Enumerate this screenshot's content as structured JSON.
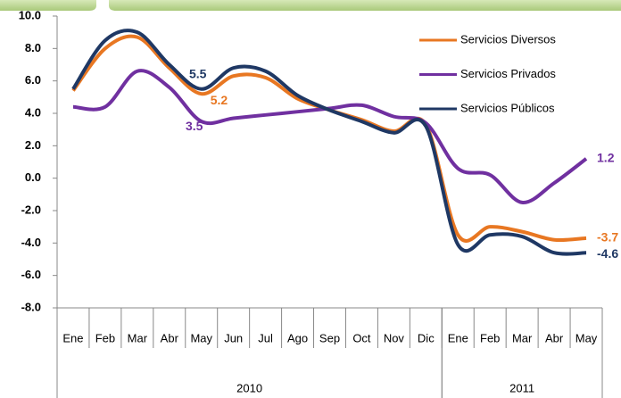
{
  "chart_data": {
    "type": "line",
    "categories": [
      "Ene",
      "Feb",
      "Mar",
      "Abr",
      "May",
      "Jun",
      "Jul",
      "Ago",
      "Sep",
      "Oct",
      "Nov",
      "Dic",
      "Ene",
      "Feb",
      "Mar",
      "Abr",
      "May"
    ],
    "groups": [
      {
        "label": "2010",
        "count": 12
      },
      {
        "label": "2011",
        "count": 5
      }
    ],
    "series": [
      {
        "name": "Servicios Diversos",
        "color": "#e87722",
        "values": [
          5.4,
          8.0,
          8.7,
          6.8,
          5.2,
          6.3,
          6.2,
          4.9,
          4.2,
          3.6,
          2.9,
          3.3,
          -3.5,
          -3.0,
          -3.3,
          -3.8,
          -3.7
        ],
        "value_labels": [
          null,
          null,
          null,
          null,
          "5.2",
          null,
          null,
          null,
          null,
          null,
          null,
          null,
          null,
          null,
          null,
          null,
          "-3.7"
        ]
      },
      {
        "name": "Servicios Privados",
        "color": "#7030a0",
        "values": [
          4.4,
          4.4,
          6.6,
          5.6,
          3.5,
          3.7,
          3.9,
          4.1,
          4.3,
          4.5,
          3.8,
          3.4,
          0.6,
          0.2,
          -1.5,
          -0.3,
          1.2
        ],
        "value_labels": [
          null,
          null,
          null,
          null,
          "3.5",
          null,
          null,
          null,
          null,
          null,
          null,
          null,
          null,
          null,
          null,
          null,
          "1.2"
        ]
      },
      {
        "name": "Servicios Públicos",
        "color": "#1f3864",
        "values": [
          5.5,
          8.5,
          9.0,
          7.0,
          5.5,
          6.8,
          6.6,
          5.1,
          4.2,
          3.5,
          2.8,
          3.2,
          -4.1,
          -3.5,
          -3.6,
          -4.6,
          -4.6
        ],
        "value_labels": [
          null,
          null,
          null,
          null,
          "5.5",
          null,
          null,
          null,
          null,
          null,
          null,
          null,
          null,
          null,
          null,
          null,
          "-4.6"
        ]
      }
    ],
    "ylim": [
      -8,
      10
    ],
    "yticks": [
      {
        "value": 10,
        "label": "10.0"
      },
      {
        "value": 8,
        "label": "8.0"
      },
      {
        "value": 6,
        "label": "6.0"
      },
      {
        "value": 4,
        "label": "4.0"
      },
      {
        "value": 2,
        "label": "2.0"
      },
      {
        "value": 0,
        "label": "0.0"
      },
      {
        "value": -2,
        "label": "-2.0"
      },
      {
        "value": -4,
        "label": "-4.0"
      },
      {
        "value": -6,
        "label": "-6.0"
      },
      {
        "value": -8,
        "label": "-8.0"
      }
    ],
    "legend": "upper right"
  }
}
